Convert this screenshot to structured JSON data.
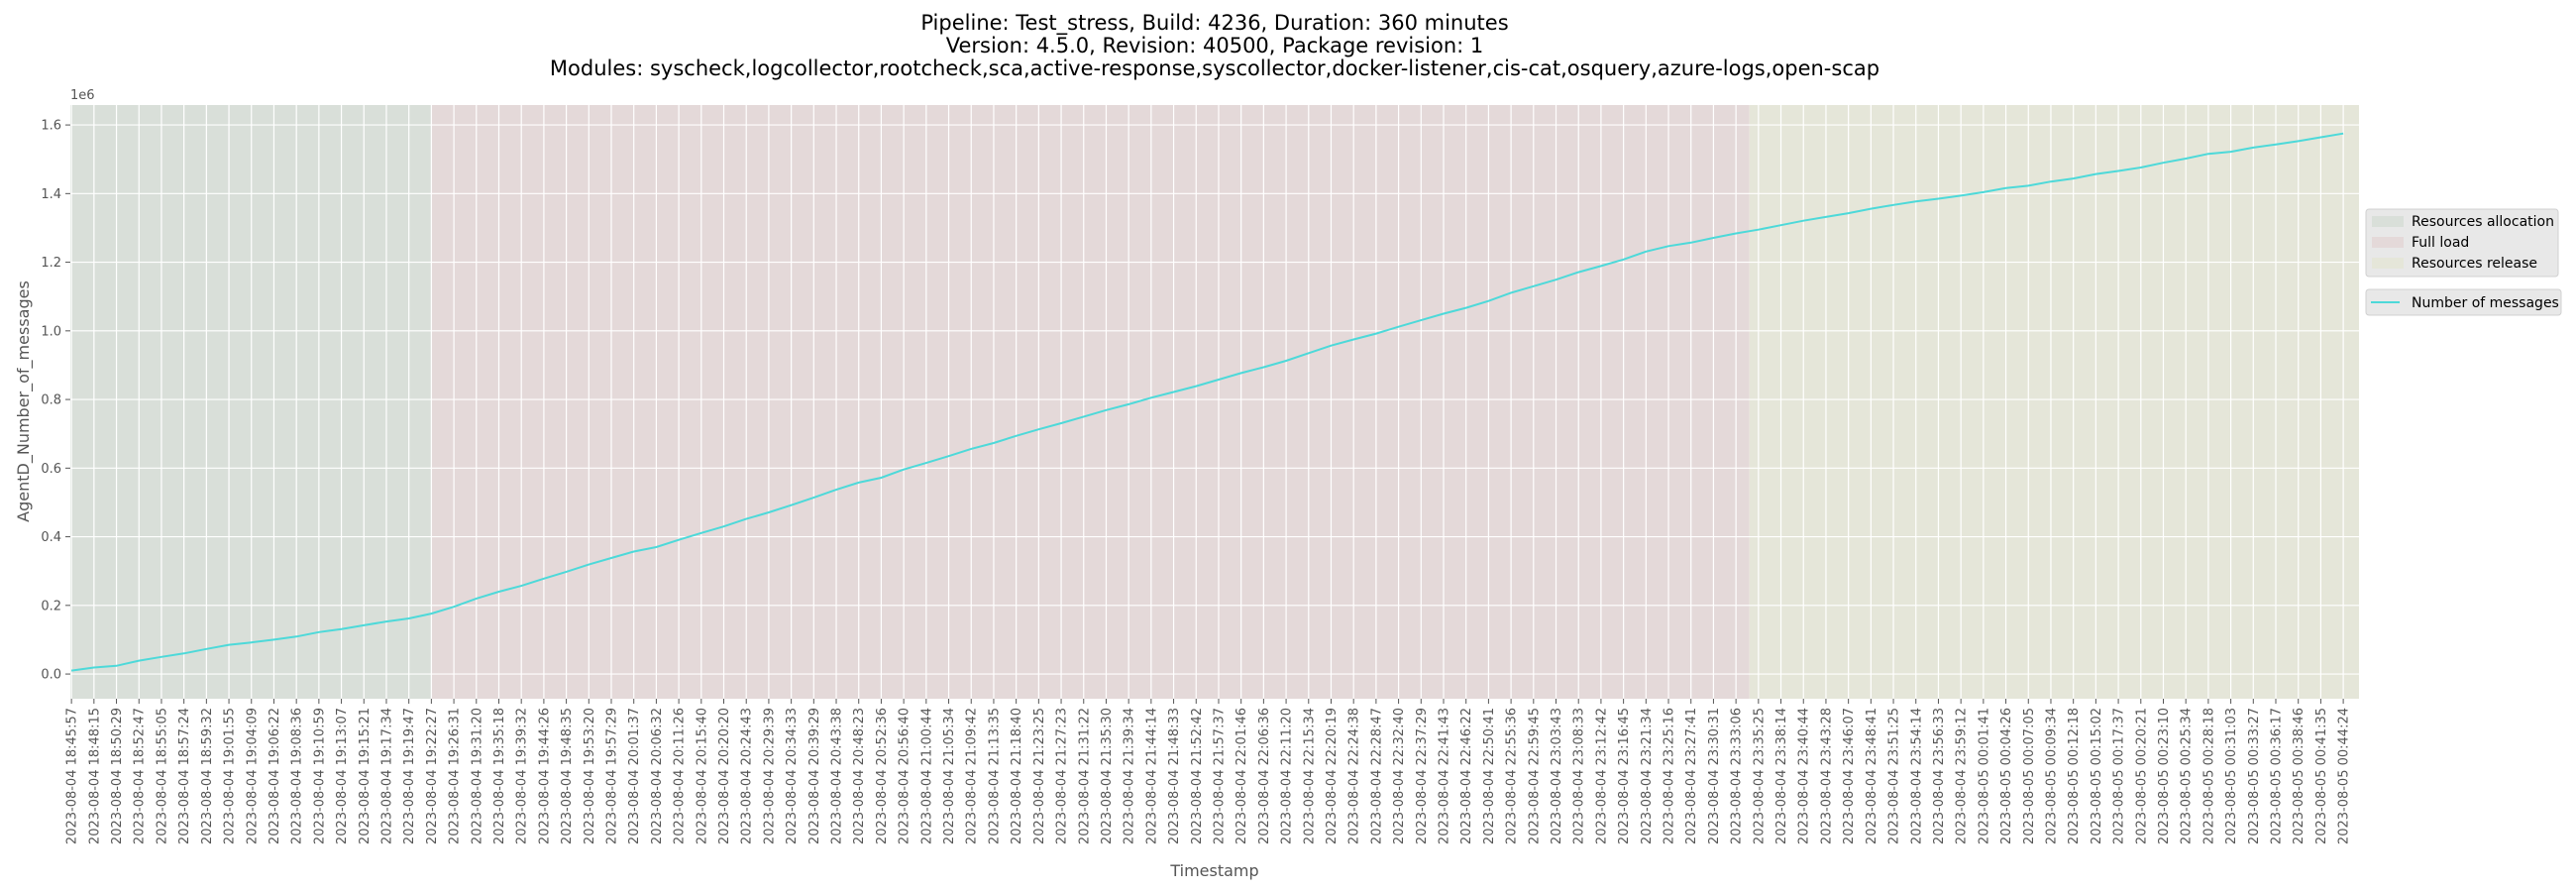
{
  "chart_data": {
    "type": "line",
    "title_lines": [
      "Pipeline: Test_stress, Build: 4236, Duration: 360 minutes",
      "Version: 4.5.0, Revision: 40500, Package revision: 1",
      "Modules: syscheck,logcollector,rootcheck,sca,active-response,syscollector,docker-listener,cis-cat,osquery,azure-logs,open-scap"
    ],
    "xlabel": "Timestamp",
    "ylabel": "AgentD_Number_of_messages",
    "y_offset_label": "1e6",
    "ylim": [
      -72000,
      1658000
    ],
    "yticks": [
      0,
      200000,
      400000,
      600000,
      800000,
      1000000,
      1200000,
      1400000,
      1600000
    ],
    "ytick_labels": [
      "0.0",
      "0.2",
      "0.4",
      "0.6",
      "0.8",
      "1.0",
      "1.2",
      "1.4",
      "1.6"
    ],
    "grid": true,
    "legend_placement": "right-outside",
    "line_color": "#4dd9d9",
    "categories": [
      "2023-08-04 18:45:57",
      "2023-08-04 18:48:15",
      "2023-08-04 18:50:29",
      "2023-08-04 18:52:47",
      "2023-08-04 18:55:05",
      "2023-08-04 18:57:24",
      "2023-08-04 18:59:32",
      "2023-08-04 19:01:55",
      "2023-08-04 19:04:09",
      "2023-08-04 19:06:22",
      "2023-08-04 19:08:36",
      "2023-08-04 19:10:59",
      "2023-08-04 19:13:07",
      "2023-08-04 19:15:21",
      "2023-08-04 19:17:34",
      "2023-08-04 19:19:47",
      "2023-08-04 19:22:27",
      "2023-08-04 19:26:31",
      "2023-08-04 19:31:20",
      "2023-08-04 19:35:18",
      "2023-08-04 19:39:32",
      "2023-08-04 19:44:26",
      "2023-08-04 19:48:35",
      "2023-08-04 19:53:20",
      "2023-08-04 19:57:29",
      "2023-08-04 20:01:37",
      "2023-08-04 20:06:32",
      "2023-08-04 20:11:26",
      "2023-08-04 20:15:40",
      "2023-08-04 20:20:20",
      "2023-08-04 20:24:43",
      "2023-08-04 20:29:39",
      "2023-08-04 20:34:33",
      "2023-08-04 20:39:29",
      "2023-08-04 20:43:38",
      "2023-08-04 20:48:23",
      "2023-08-04 20:52:36",
      "2023-08-04 20:56:40",
      "2023-08-04 21:00:44",
      "2023-08-04 21:05:34",
      "2023-08-04 21:09:42",
      "2023-08-04 21:13:35",
      "2023-08-04 21:18:40",
      "2023-08-04 21:23:25",
      "2023-08-04 21:27:23",
      "2023-08-04 21:31:22",
      "2023-08-04 21:35:30",
      "2023-08-04 21:39:34",
      "2023-08-04 21:44:14",
      "2023-08-04 21:48:33",
      "2023-08-04 21:52:42",
      "2023-08-04 21:57:37",
      "2023-08-04 22:01:46",
      "2023-08-04 22:06:36",
      "2023-08-04 22:11:20",
      "2023-08-04 22:15:34",
      "2023-08-04 22:20:19",
      "2023-08-04 22:24:38",
      "2023-08-04 22:28:47",
      "2023-08-04 22:32:40",
      "2023-08-04 22:37:29",
      "2023-08-04 22:41:43",
      "2023-08-04 22:46:22",
      "2023-08-04 22:50:41",
      "2023-08-04 22:55:36",
      "2023-08-04 22:59:45",
      "2023-08-04 23:03:43",
      "2023-08-04 23:08:33",
      "2023-08-04 23:12:42",
      "2023-08-04 23:16:45",
      "2023-08-04 23:21:34",
      "2023-08-04 23:25:16",
      "2023-08-04 23:27:41",
      "2023-08-04 23:30:31",
      "2023-08-04 23:33:06",
      "2023-08-04 23:35:25",
      "2023-08-04 23:38:14",
      "2023-08-04 23:40:44",
      "2023-08-04 23:43:28",
      "2023-08-04 23:46:07",
      "2023-08-04 23:48:41",
      "2023-08-04 23:51:25",
      "2023-08-04 23:54:14",
      "2023-08-04 23:56:33",
      "2023-08-04 23:59:12",
      "2023-08-05 00:01:41",
      "2023-08-05 00:04:26",
      "2023-08-05 00:07:05",
      "2023-08-05 00:09:34",
      "2023-08-05 00:12:18",
      "2023-08-05 00:15:02",
      "2023-08-05 00:17:37",
      "2023-08-05 00:20:21",
      "2023-08-05 00:23:10",
      "2023-08-05 00:25:34",
      "2023-08-05 00:28:18",
      "2023-08-05 00:31:03",
      "2023-08-05 00:33:27",
      "2023-08-05 00:36:17",
      "2023-08-05 00:38:46",
      "2023-08-05 00:41:35",
      "2023-08-05 00:44:24"
    ],
    "series": [
      {
        "name": "Number of messages",
        "values": [
          10000,
          19000,
          24000,
          39000,
          50000,
          60000,
          73000,
          85000,
          92000,
          100000,
          109000,
          122000,
          131000,
          142000,
          153000,
          162000,
          176000,
          196000,
          220000,
          240000,
          257000,
          278000,
          298000,
          319000,
          338000,
          357000,
          370000,
          391000,
          411000,
          430000,
          452000,
          471000,
          492000,
          514000,
          537000,
          558000,
          572000,
          596000,
          615000,
          635000,
          656000,
          673000,
          694000,
          713000,
          731000,
          750000,
          769000,
          786000,
          805000,
          822000,
          839000,
          858000,
          877000,
          894000,
          913000,
          935000,
          957000,
          975000,
          992000,
          1012000,
          1031000,
          1050000,
          1067000,
          1087000,
          1111000,
          1130000,
          1149000,
          1171000,
          1189000,
          1208000,
          1231000,
          1247000,
          1257000,
          1271000,
          1284000,
          1295000,
          1308000,
          1321000,
          1332000,
          1343000,
          1356000,
          1367000,
          1377000,
          1385000,
          1394000,
          1404000,
          1416000,
          1423000,
          1435000,
          1444000,
          1457000,
          1466000,
          1476000,
          1490000,
          1502000,
          1516000,
          1522000,
          1534000,
          1543000,
          1553000,
          1564000,
          1575000
        ]
      }
    ],
    "regions": [
      {
        "name": "Resources allocation",
        "start": "2023-08-04 18:45:57",
        "end": "2023-08-04 19:22:27",
        "color": "#d9dfd9"
      },
      {
        "name": "Full load",
        "start": "2023-08-04 19:22:27",
        "end": "2023-08-04 23:34:29",
        "color": "#e4d9d9"
      },
      {
        "name": "Resources release",
        "start": "2023-08-04 23:34:29",
        "end": "2023-08-05 00:44:24",
        "color": "#e5e6d9"
      }
    ]
  }
}
